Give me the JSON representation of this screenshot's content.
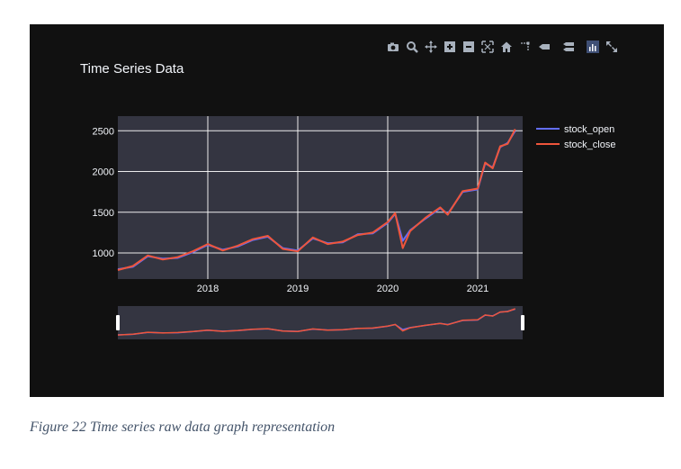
{
  "caption": "Figure 22 Time series raw data graph representation",
  "modebar": {
    "icons": [
      "camera-icon",
      "zoom-icon",
      "pan-icon",
      "zoom-in-icon",
      "zoom-out-icon",
      "autoscale-icon",
      "reset-axes-icon",
      "spike-lines-icon",
      "hover-closest-icon",
      "hover-compare-icon",
      "plotly-logo-icon",
      "fullscreen-icon"
    ],
    "color": "#a8b1bd"
  },
  "colors": {
    "background": "#111111",
    "plot_bg": "#343541",
    "grid": "#ffffff",
    "open": "#636efa",
    "close": "#ef553b",
    "font": "#f2f5fa"
  },
  "chart_data": {
    "type": "line",
    "title": "Time Series Data",
    "x": [
      "2017-01",
      "2017-03",
      "2017-05",
      "2017-07",
      "2017-09",
      "2017-11",
      "2018-01",
      "2018-03",
      "2018-05",
      "2018-07",
      "2018-09",
      "2018-11",
      "2019-01",
      "2019-03",
      "2019-05",
      "2019-07",
      "2019-09",
      "2019-11",
      "2020-01",
      "2020-02",
      "2020-03",
      "2020-04",
      "2020-06",
      "2020-08",
      "2020-09",
      "2020-11",
      "2021-01",
      "2021-02",
      "2021-03",
      "2021-04",
      "2021-05",
      "2021-06"
    ],
    "series": [
      {
        "name": "stock_open",
        "values": [
          800,
          830,
          960,
          930,
          940,
          1010,
          1100,
          1040,
          1080,
          1160,
          1200,
          1060,
          1030,
          1180,
          1120,
          1130,
          1230,
          1240,
          1370,
          1480,
          1150,
          1280,
          1420,
          1550,
          1480,
          1750,
          1780,
          2100,
          2050,
          2300,
          2350,
          2500
        ]
      },
      {
        "name": "stock_close",
        "values": [
          790,
          840,
          970,
          920,
          950,
          1020,
          1110,
          1030,
          1090,
          1170,
          1210,
          1050,
          1020,
          1190,
          1110,
          1140,
          1220,
          1250,
          1380,
          1490,
          1060,
          1270,
          1430,
          1560,
          1470,
          1760,
          1790,
          2110,
          2040,
          2310,
          2340,
          2520
        ]
      }
    ],
    "ylim": [
      680,
      2680
    ],
    "yticks": [
      1000,
      1500,
      2000,
      2500
    ],
    "xticks": [
      "2018",
      "2019",
      "2020",
      "2021"
    ],
    "xlim": [
      "2017-01",
      "2021-07"
    ],
    "grid": true,
    "legend": "top-right",
    "rangeslider": true
  }
}
